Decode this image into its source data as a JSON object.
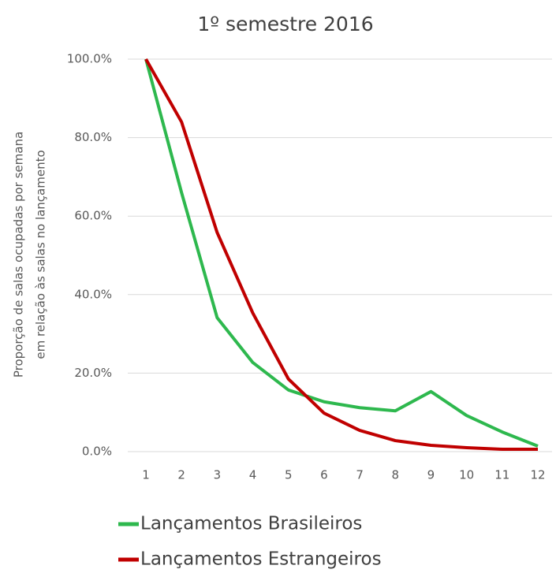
{
  "chart_data": {
    "type": "line",
    "title": "1º semestre 2016",
    "ylabel": [
      "Proporção de salas ocupadas por semana",
      "em relação às salas no lançamento"
    ],
    "categories": [
      "1",
      "2",
      "3",
      "4",
      "5",
      "6",
      "7",
      "8",
      "9",
      "10",
      "11",
      "12"
    ],
    "series": [
      {
        "name": "Lançamentos Brasileiros",
        "color": "#2eb84e",
        "values": [
          100,
          66,
          34.1,
          22.7,
          15.7,
          12.7,
          11.2,
          10.4,
          15.3,
          9.2,
          5,
          1.4
        ]
      },
      {
        "name": "Lançamentos Estrangeiros",
        "color": "#c00000",
        "values": [
          100,
          84,
          55.8,
          35.3,
          18.5,
          9.8,
          5.4,
          2.8,
          1.6,
          1.0,
          0.6,
          0.6
        ]
      }
    ],
    "ylim": [
      0,
      100
    ],
    "yticks": [
      {
        "value": 0,
        "label": "0.0%"
      },
      {
        "value": 20,
        "label": "20.0%"
      },
      {
        "value": 40,
        "label": "40.0%"
      },
      {
        "value": 60,
        "label": "60.0%"
      },
      {
        "value": 80,
        "label": "80.0%"
      },
      {
        "value": 100,
        "label": "100.0%"
      }
    ],
    "grid": true
  }
}
